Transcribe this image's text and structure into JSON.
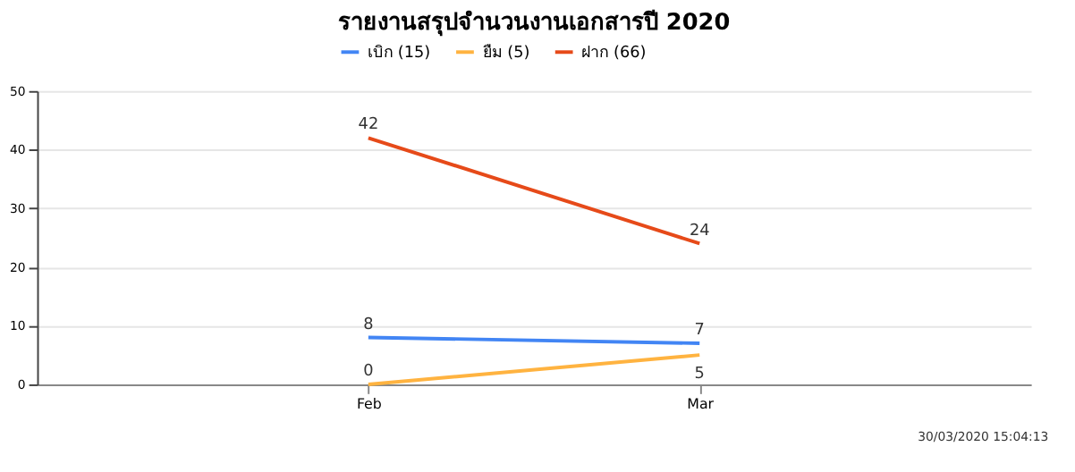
{
  "chart_data": {
    "type": "line",
    "title": "รายงานสรุปจำนวนงานเอกสารปี 2020",
    "categories": [
      "Feb",
      "Mar"
    ],
    "series": [
      {
        "name": "เบิก (15)",
        "color": "#4285f4",
        "values": [
          8,
          7
        ]
      },
      {
        "name": "ยืม (5)",
        "color": "#ffb340",
        "values": [
          0,
          5
        ]
      },
      {
        "name": "ฝาก (66)",
        "color": "#e64a19",
        "values": [
          42,
          24
        ]
      }
    ],
    "ylim": [
      0,
      50
    ],
    "yticks": [
      0,
      10,
      20,
      30,
      40,
      50
    ],
    "grid": "y",
    "legend": "top",
    "data_labels": true,
    "annotations": [
      "30/03/2020 15:04:13"
    ]
  }
}
